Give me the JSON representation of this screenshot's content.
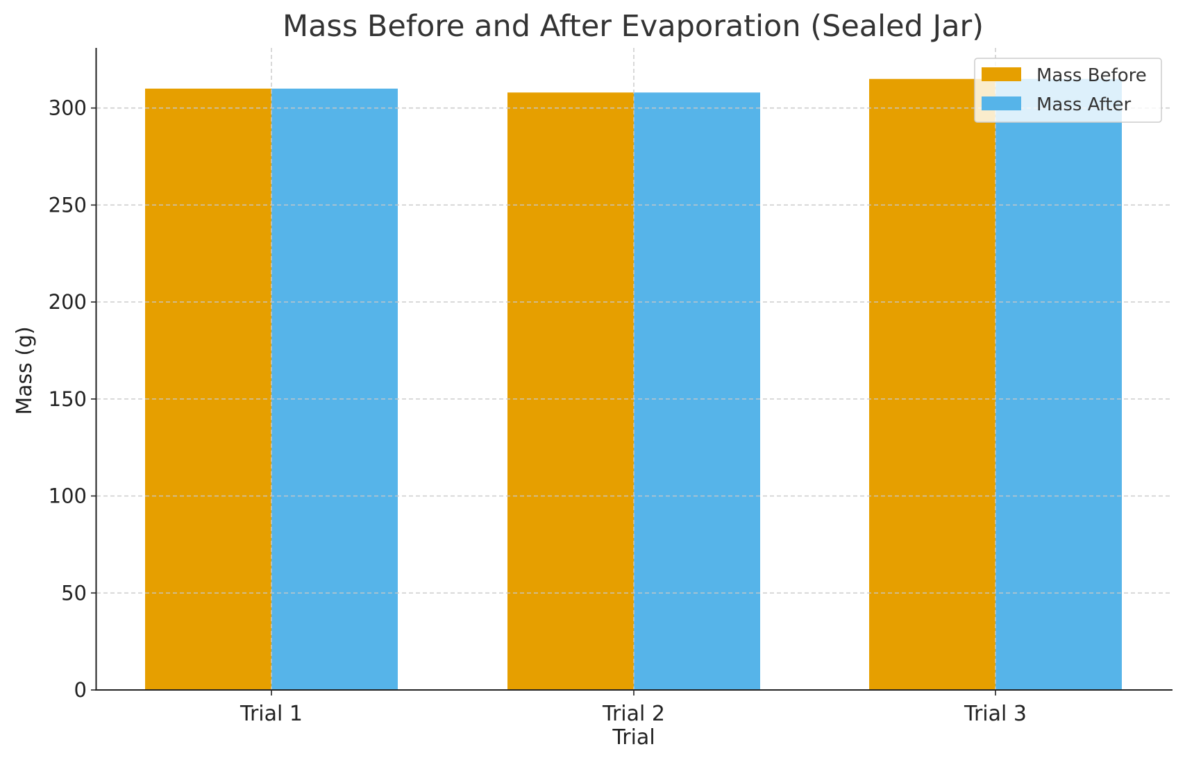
{
  "chart_data": {
    "type": "bar",
    "title": "Mass Before and After Evaporation (Sealed Jar)",
    "xlabel": "Trial",
    "ylabel": "Mass (g)",
    "categories": [
      "Trial 1",
      "Trial 2",
      "Trial 3"
    ],
    "series": [
      {
        "name": "Mass Before",
        "color": "#E69F00",
        "values": [
          310,
          308,
          315
        ]
      },
      {
        "name": "Mass After",
        "color": "#56B4E9",
        "values": [
          310,
          308,
          315
        ]
      }
    ],
    "ylim": [
      0,
      331
    ],
    "yticks": [
      0,
      50,
      100,
      150,
      200,
      250,
      300
    ],
    "grid": true,
    "legend_position": "top-right"
  }
}
